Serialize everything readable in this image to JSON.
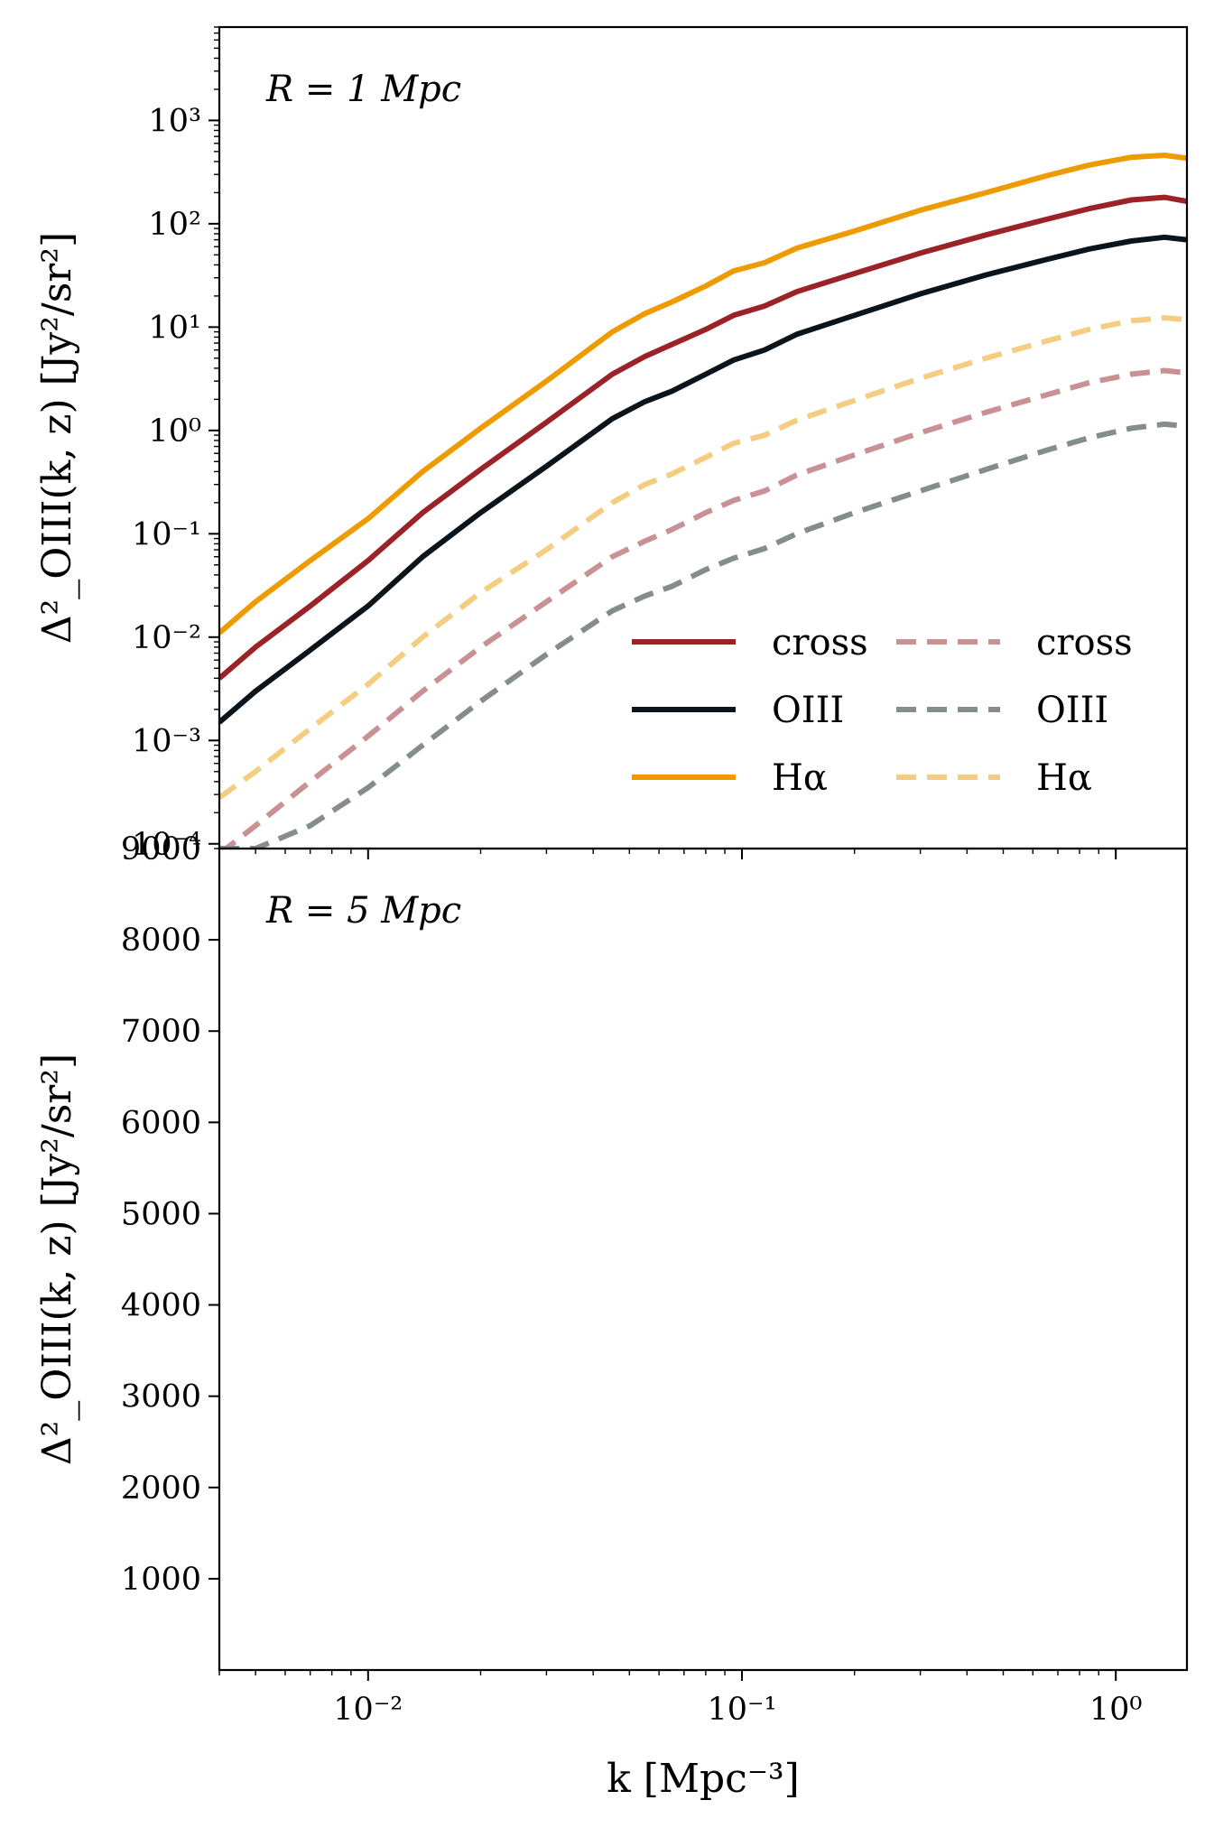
{
  "chart_data": [
    {
      "type": "line",
      "panel": "top",
      "annotation": "R = 1 Mpc",
      "ylabel": "Δ²_OIII(k, z) [Jy²/sr²]",
      "xscale": "log",
      "yscale": "log",
      "xlim": [
        0.004,
        1.55
      ],
      "ylim": [
        9e-05,
        8000
      ],
      "x_tick_labels": [
        "10⁻²",
        "10⁻¹",
        "10⁰"
      ],
      "y_tick_labels": [
        "10³",
        "10²",
        "10¹",
        "10⁰",
        "10⁻¹",
        "10⁻²",
        "10⁻³",
        "10⁻⁴",
        "9000"
      ],
      "legend_position": "lower-right",
      "legend_columns": 2,
      "x": [
        0.004,
        0.005,
        0.007,
        0.01,
        0.014,
        0.02,
        0.03,
        0.045,
        0.055,
        0.065,
        0.08,
        0.095,
        0.115,
        0.14,
        0.2,
        0.3,
        0.45,
        0.65,
        0.85,
        1.1,
        1.35,
        1.55
      ],
      "series": [
        {
          "name": "cross",
          "color": "#9b2226",
          "style": "solid",
          "values": [
            0.004,
            0.008,
            0.02,
            0.055,
            0.16,
            0.42,
            1.2,
            3.5,
            5.2,
            6.8,
            9.5,
            13,
            16,
            22,
            33,
            52,
            78,
            110,
            140,
            170,
            180,
            165
          ]
        },
        {
          "name": "OIII",
          "color": "#0b141a",
          "style": "solid",
          "values": [
            0.0015,
            0.003,
            0.0075,
            0.02,
            0.06,
            0.16,
            0.45,
            1.3,
            1.9,
            2.4,
            3.5,
            4.8,
            6.0,
            8.5,
            13,
            21,
            32,
            45,
            57,
            68,
            74,
            70
          ]
        },
        {
          "name": "Hα",
          "color": "#ee9b00",
          "style": "solid",
          "values": [
            0.011,
            0.022,
            0.055,
            0.14,
            0.4,
            1.05,
            3.0,
            9.0,
            13.5,
            17.5,
            25,
            35,
            42,
            58,
            85,
            135,
            200,
            290,
            370,
            440,
            460,
            430
          ]
        },
        {
          "name": "cross",
          "color": "#c99193",
          "style": "dashed",
          "values": [
            8e-05,
            0.00015,
            0.0004,
            0.0011,
            0.003,
            0.008,
            0.022,
            0.06,
            0.085,
            0.11,
            0.16,
            0.21,
            0.26,
            0.37,
            0.58,
            0.95,
            1.5,
            2.2,
            2.9,
            3.5,
            3.8,
            3.6
          ]
        },
        {
          "name": "OIII",
          "color": "#848c8d",
          "style": "dashed",
          "values": [
            9e-05,
            9e-05,
            0.00015,
            0.00035,
            0.0009,
            0.0024,
            0.0068,
            0.018,
            0.025,
            0.031,
            0.045,
            0.058,
            0.072,
            0.1,
            0.16,
            0.26,
            0.42,
            0.64,
            0.85,
            1.05,
            1.15,
            1.1
          ]
        },
        {
          "name": "Hα",
          "color": "#f5cd80",
          "style": "dashed",
          "values": [
            0.00028,
            0.0005,
            0.0013,
            0.0035,
            0.01,
            0.027,
            0.07,
            0.2,
            0.3,
            0.38,
            0.55,
            0.75,
            0.9,
            1.25,
            1.95,
            3.2,
            5.0,
            7.3,
            9.5,
            11.5,
            12.3,
            11.8
          ]
        }
      ]
    },
    {
      "type": "line",
      "panel": "bottom",
      "annotation": "R = 5 Mpc",
      "xlabel": "k [Mpc⁻³]",
      "ylabel": "Δ²_OIII(k, z) [Jy²/sr²]",
      "xscale": "log",
      "yscale": "linear",
      "xlim": [
        0.004,
        1.55
      ],
      "ylim": [
        0,
        9000
      ],
      "y_ticks": [
        1000,
        2000,
        3000,
        4000,
        5000,
        6000,
        7000,
        8000
      ],
      "x_tick_labels": [
        "10⁻²",
        "10⁻¹",
        "10⁰"
      ],
      "series": []
    }
  ]
}
